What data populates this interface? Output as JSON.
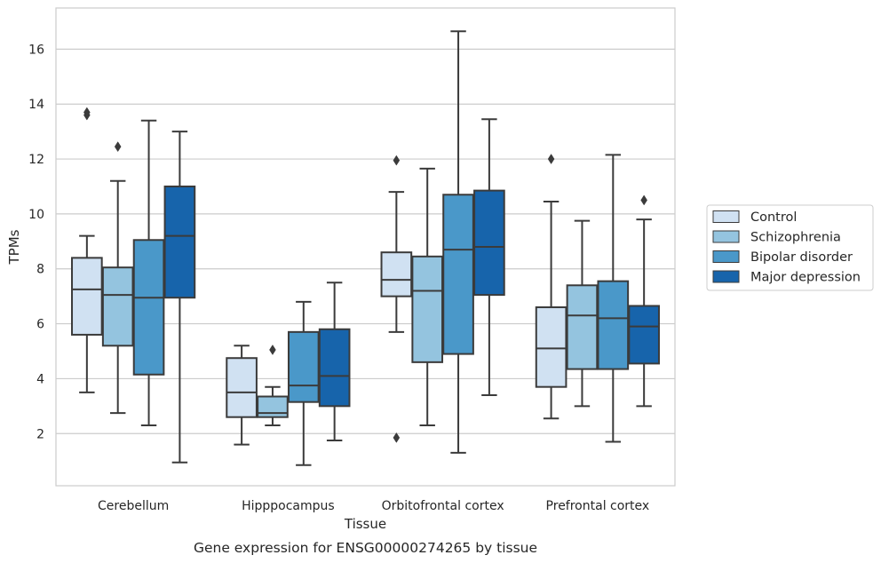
{
  "chart_data": {
    "type": "box",
    "caption": "Gene expression for ENSG00000274265 by tissue",
    "xlabel": "Tissue",
    "ylabel": "TPMs",
    "ylim": [
      0.1,
      17.5
    ],
    "yticks": [
      2,
      4,
      6,
      8,
      10,
      12,
      14,
      16
    ],
    "grid": "horizontal",
    "legend_position": "right",
    "categories": [
      "Cerebellum",
      "Hipppocampus",
      "Orbitofrontal cortex",
      "Prefrontal cortex"
    ],
    "series": [
      {
        "name": "Control",
        "color": "#d0e1f2",
        "boxes": [
          {
            "whislo": 3.5,
            "q1": 5.6,
            "med": 7.25,
            "q3": 8.4,
            "whishi": 9.2,
            "fliers": [
              13.6,
              13.7
            ]
          },
          {
            "whislo": 1.6,
            "q1": 2.6,
            "med": 3.5,
            "q3": 4.75,
            "whishi": 5.2,
            "fliers": []
          },
          {
            "whislo": 5.7,
            "q1": 7.0,
            "med": 7.6,
            "q3": 8.6,
            "whishi": 10.8,
            "fliers": [
              11.95,
              1.85
            ]
          },
          {
            "whislo": 2.55,
            "q1": 3.7,
            "med": 5.1,
            "q3": 6.6,
            "whishi": 10.45,
            "fliers": [
              12.0
            ]
          }
        ]
      },
      {
        "name": "Schizophrenia",
        "color": "#94c4df",
        "boxes": [
          {
            "whislo": 2.75,
            "q1": 5.2,
            "med": 7.05,
            "q3": 8.05,
            "whishi": 11.2,
            "fliers": [
              12.45
            ]
          },
          {
            "whislo": 2.3,
            "q1": 2.6,
            "med": 2.75,
            "q3": 3.35,
            "whishi": 3.7,
            "fliers": [
              5.05
            ]
          },
          {
            "whislo": 2.3,
            "q1": 4.6,
            "med": 7.2,
            "q3": 8.45,
            "whishi": 11.65,
            "fliers": []
          },
          {
            "whislo": 3.0,
            "q1": 4.35,
            "med": 6.3,
            "q3": 7.4,
            "whishi": 9.75,
            "fliers": []
          }
        ]
      },
      {
        "name": "Bipolar disorder",
        "color": "#4a98c9",
        "boxes": [
          {
            "whislo": 2.3,
            "q1": 4.15,
            "med": 6.95,
            "q3": 9.05,
            "whishi": 13.4,
            "fliers": []
          },
          {
            "whislo": 0.85,
            "q1": 3.15,
            "med": 3.75,
            "q3": 5.7,
            "whishi": 6.8,
            "fliers": []
          },
          {
            "whislo": 1.3,
            "q1": 4.9,
            "med": 8.7,
            "q3": 10.7,
            "whishi": 16.65,
            "fliers": []
          },
          {
            "whislo": 1.7,
            "q1": 4.35,
            "med": 6.2,
            "q3": 7.55,
            "whishi": 12.15,
            "fliers": []
          }
        ]
      },
      {
        "name": "Major depression",
        "color": "#1764ab",
        "boxes": [
          {
            "whislo": 0.95,
            "q1": 6.95,
            "med": 9.2,
            "q3": 11.0,
            "whishi": 13.0,
            "fliers": []
          },
          {
            "whislo": 1.75,
            "q1": 3.0,
            "med": 4.1,
            "q3": 5.8,
            "whishi": 7.5,
            "fliers": []
          },
          {
            "whislo": 3.4,
            "q1": 7.05,
            "med": 8.8,
            "q3": 10.85,
            "whishi": 13.45,
            "fliers": []
          },
          {
            "whislo": 3.0,
            "q1": 4.55,
            "med": 5.9,
            "q3": 6.65,
            "whishi": 9.8,
            "fliers": [
              10.5
            ]
          }
        ]
      }
    ]
  }
}
